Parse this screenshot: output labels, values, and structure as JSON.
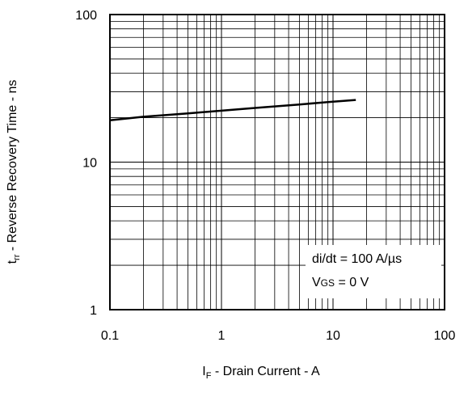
{
  "chart_data": {
    "type": "line",
    "x_scale": "log",
    "y_scale": "log",
    "xlim": [
      0.1,
      100
    ],
    "ylim": [
      1,
      100
    ],
    "grid": true,
    "x_tick_labels": [
      "0.1",
      "1",
      "10",
      "100"
    ],
    "y_tick_labels": [
      "1",
      "10",
      "100"
    ],
    "x_tick_values": [
      0.1,
      1,
      10,
      100
    ],
    "y_tick_values": [
      1,
      10,
      100
    ],
    "xlabel": {
      "main": "I",
      "sub": "F",
      "rest": " - Drain Current - A"
    },
    "ylabel": {
      "main": "t",
      "sub": "rr",
      "rest": " - Reverse Recovery Time - ns"
    },
    "legend_placement": "bottom-right",
    "annotations": {
      "line1": "di/dt = 100 A/µs",
      "line2_main": "V",
      "line2_sub": "GS",
      "line2_rest": " = 0 V"
    },
    "series": [
      {
        "x": [
          0.1,
          0.2,
          0.5,
          1,
          2,
          5,
          10,
          16
        ],
        "y": [
          19.2,
          20.3,
          21.4,
          22.3,
          23.3,
          24.6,
          25.7,
          26.4
        ]
      }
    ]
  }
}
